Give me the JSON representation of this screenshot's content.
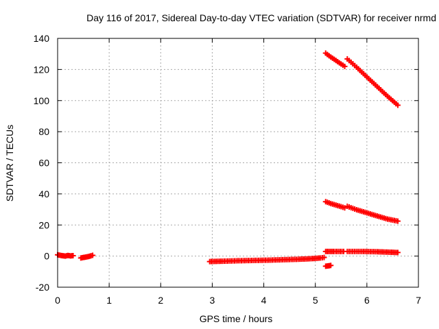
{
  "chart_data": {
    "type": "scatter",
    "title": "Day 116 of 2017, Sidereal Day-to-day VTEC variation (SDTVAR) for receiver nrmd",
    "xlabel": "GPS time / hours",
    "ylabel": "SDTVAR / TECUs",
    "xlim": [
      0,
      7
    ],
    "ylim": [
      -20,
      140
    ],
    "xticks": [
      "0",
      "1",
      "2",
      "3",
      "4",
      "5",
      "6",
      "7"
    ],
    "yticks": [
      "-20",
      "0",
      "20",
      "40",
      "60",
      "80",
      "100",
      "120",
      "140"
    ],
    "grid": true,
    "legend": "none",
    "color": "#ff0000",
    "marker": "plus",
    "series": [
      {
        "x": [
          0.0,
          0.05,
          0.1,
          0.15,
          0.2,
          0.25,
          0.3
        ],
        "y": [
          0.8,
          0.5,
          0.2,
          0.0,
          0.4,
          0.1,
          0.3
        ]
      },
      {
        "x": [
          0.45,
          0.5,
          0.55,
          0.6,
          0.65,
          0.68
        ],
        "y": [
          -1.2,
          -0.9,
          -0.6,
          -0.3,
          0.2,
          0.5
        ]
      },
      {
        "x": [
          2.95,
          3.2,
          3.5,
          3.8,
          4.1,
          4.4,
          4.7,
          4.95,
          5.1,
          5.17
        ],
        "y": [
          -3.5,
          -3.3,
          -3.0,
          -2.8,
          -2.6,
          -2.3,
          -2.0,
          -1.6,
          -1.2,
          -0.9
        ]
      },
      {
        "x": [
          5.2,
          5.25,
          5.3
        ],
        "y": [
          -6.5,
          -6.3,
          -6.0
        ]
      },
      {
        "x": [
          5.2,
          5.35,
          5.55
        ],
        "y": [
          3.0,
          3.0,
          3.0
        ]
      },
      {
        "x": [
          5.62,
          5.9,
          6.2,
          6.45,
          6.6
        ],
        "y": [
          3.0,
          3.0,
          2.8,
          2.5,
          2.3
        ]
      },
      {
        "x": [
          5.2,
          5.3,
          5.4,
          5.5,
          5.57
        ],
        "y": [
          35.0,
          33.8,
          32.8,
          31.8,
          31.0
        ]
      },
      {
        "x": [
          5.62,
          5.8,
          6.0,
          6.2,
          6.4,
          6.6
        ],
        "y": [
          32.0,
          29.8,
          27.8,
          25.8,
          23.8,
          22.5
        ]
      },
      {
        "x": [
          5.2,
          5.3,
          5.4,
          5.5,
          5.57
        ],
        "y": [
          130.5,
          128.0,
          125.8,
          123.5,
          122.0
        ]
      },
      {
        "x": [
          5.62,
          5.8,
          6.0,
          6.2,
          6.4,
          6.6
        ],
        "y": [
          126.8,
          121.5,
          115.2,
          109.0,
          102.8,
          97.0
        ]
      }
    ]
  }
}
